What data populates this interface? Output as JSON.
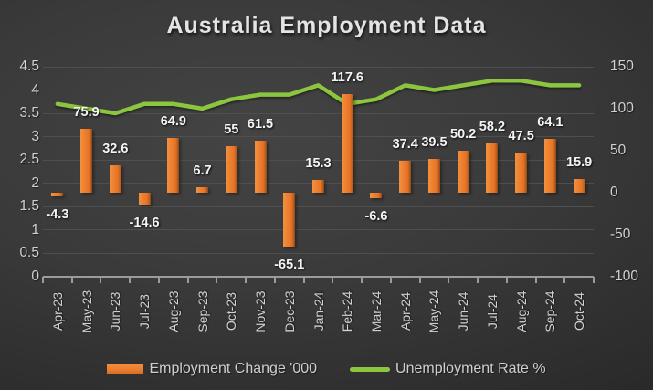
{
  "chart_data": {
    "type": "bar",
    "subtype": "combo-bar-line",
    "title": "Australia Employment Data",
    "categories": [
      "Apr-23",
      "May-23",
      "Jun-23",
      "Jul-23",
      "Aug-23",
      "Sep-23",
      "Oct-23",
      "Nov-23",
      "Dec-23",
      "Jan-24",
      "Feb-24",
      "Mar-24",
      "Apr-24",
      "May-24",
      "Jun-24",
      "Jul-24",
      "Aug-24",
      "Sep-24",
      "Oct-24"
    ],
    "series": [
      {
        "name": "Employment Change '000",
        "type": "bar",
        "axis": "right",
        "color": "#ED7D31",
        "values": [
          -4.3,
          75.9,
          32.6,
          -14.6,
          64.9,
          6.7,
          55,
          61.5,
          -65.1,
          15.3,
          117.6,
          -6.6,
          37.4,
          39.5,
          50.2,
          58.2,
          47.5,
          64.1,
          15.9
        ],
        "data_labels": [
          "-4.3",
          "75.9",
          "32.6",
          "-14.6",
          "64.9",
          "6.7",
          "55",
          "61.5",
          "-65.1",
          "15.3",
          "117.6",
          "-6.6",
          "37.4",
          "39.5",
          "50.2",
          "58.2",
          "47.5",
          "64.1",
          "15.9"
        ]
      },
      {
        "name": "Unemployment Rate %",
        "type": "line",
        "axis": "left",
        "color": "#8CC63F",
        "values": [
          3.7,
          3.6,
          3.5,
          3.7,
          3.7,
          3.6,
          3.8,
          3.9,
          3.9,
          4.1,
          3.7,
          3.8,
          4.1,
          4.0,
          4.1,
          4.2,
          4.2,
          4.1,
          4.1
        ]
      }
    ],
    "left_axis": {
      "min": 0,
      "max": 4.5,
      "step": 0.5,
      "ticks": [
        "4.5",
        "4",
        "3.5",
        "3",
        "2.5",
        "2",
        "1.5",
        "1",
        "0.5",
        "0"
      ]
    },
    "right_axis": {
      "min": -100,
      "max": 150,
      "step": 50,
      "ticks": [
        "150",
        "100",
        "50",
        "0",
        "-50",
        "-100"
      ]
    },
    "grid": true,
    "legend_position": "bottom"
  },
  "colors": {
    "bar": "#ED7D31",
    "line": "#8CC63F",
    "grid": "#4F4F4F",
    "axis_line": "#9B9B9B",
    "tick_text": "#D2D2D2",
    "data_label_text": "#F4F4F4",
    "title_text": "#E4E4E4"
  }
}
